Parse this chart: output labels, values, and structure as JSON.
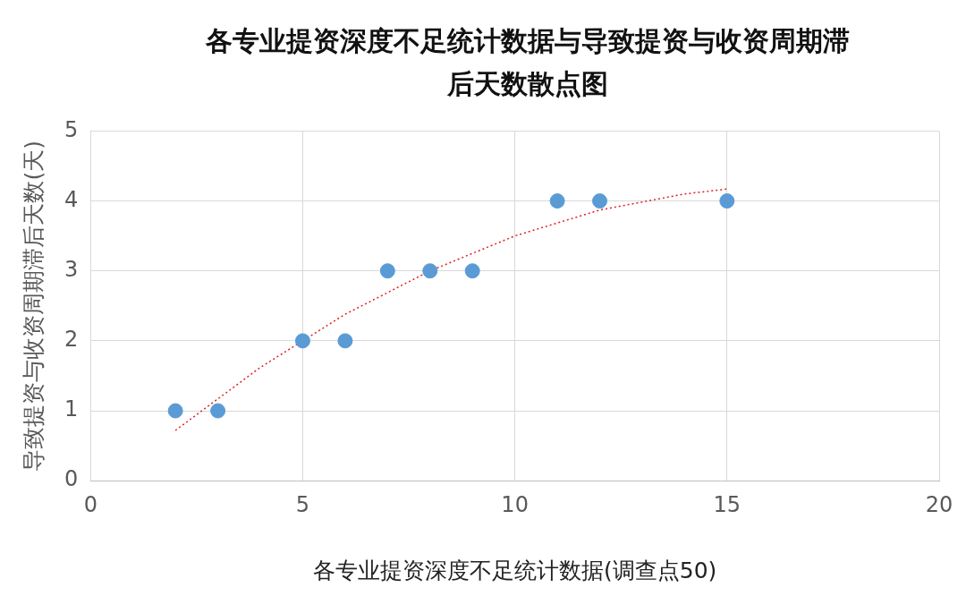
{
  "chart_data": {
    "type": "scatter",
    "title": "各专业提资深度不足统计数据与导致提资与收资周期滞后天数散点图",
    "xlabel": "各专业提资深度不足统计数据(调查点50)",
    "ylabel": "导致提资与收资周期滞后天数(天)",
    "x": [
      2,
      3,
      5,
      6,
      7,
      8,
      9,
      11,
      12,
      15
    ],
    "series": [
      {
        "color": "#5b9bd5",
        "marker": "circle",
        "values": [
          1,
          1,
          2,
          2,
          3,
          3,
          3,
          4,
          4,
          4
        ]
      },
      {
        "type": "line",
        "color": "#e02020",
        "line_style": "dotted",
        "marker": "none",
        "x": [
          2,
          4,
          6,
          8,
          10,
          12,
          14,
          15
        ],
        "values": [
          0.72,
          1.62,
          2.38,
          3.0,
          3.5,
          3.87,
          4.1,
          4.17
        ]
      }
    ],
    "xlim": [
      0,
      20
    ],
    "xticks": [
      0,
      5,
      10,
      15,
      20
    ],
    "ylim": [
      0,
      5
    ],
    "yticks": [
      0,
      1,
      2,
      3,
      4,
      5
    ],
    "grid": true,
    "legend": false
  }
}
